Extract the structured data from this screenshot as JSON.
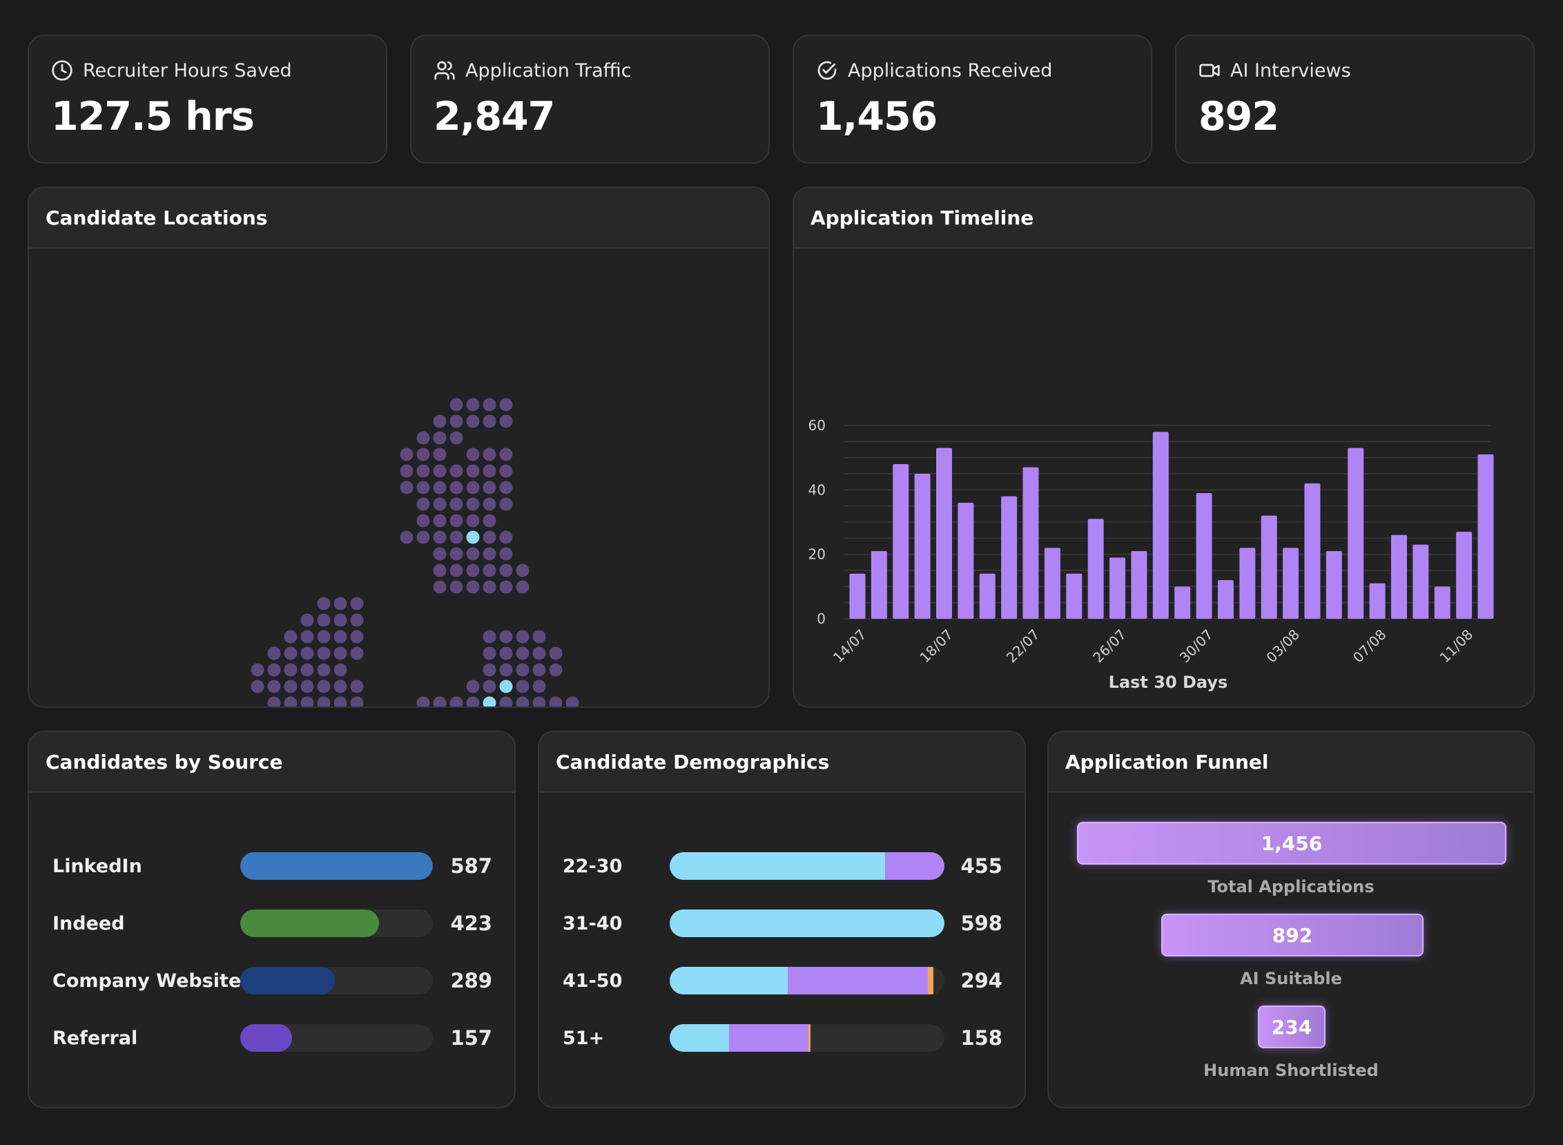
{
  "stats": [
    {
      "label": "Recruiter Hours Saved",
      "value": "127.5 hrs",
      "icon": "clock-icon"
    },
    {
      "label": "Application Traffic",
      "value": "2,847",
      "icon": "users-icon"
    },
    {
      "label": "Applications Received",
      "value": "1,456",
      "icon": "check-circle-icon"
    },
    {
      "label": "AI Interviews",
      "value": "892",
      "icon": "video-icon"
    }
  ],
  "locations": {
    "title": "Candidate Locations",
    "dot_color": "#5c4a7e",
    "highlight_color": "#8fdcf9"
  },
  "timeline": {
    "title": "Application Timeline",
    "chart_data": {
      "type": "bar",
      "title": "Application Timeline",
      "xlabel": "Last 30 Days",
      "ylabel": "",
      "ylim": [
        0,
        60
      ],
      "yticks": [
        0,
        20,
        40,
        60
      ],
      "tick_labels": [
        "14/07",
        "18/07",
        "22/07",
        "26/07",
        "30/07",
        "03/08",
        "07/08",
        "11/08"
      ],
      "values": [
        14,
        21,
        48,
        45,
        53,
        36,
        14,
        38,
        47,
        22,
        14,
        31,
        19,
        21,
        58,
        10,
        39,
        12,
        22,
        32,
        22,
        42,
        21,
        53,
        11,
        26,
        23,
        10,
        27,
        51
      ],
      "bar_color": "#b084f4"
    }
  },
  "sources": {
    "title": "Candidates by Source",
    "items": [
      {
        "label": "LinkedIn",
        "count": "587",
        "value": 587,
        "color": "#3a78bf"
      },
      {
        "label": "Indeed",
        "count": "423",
        "value": 423,
        "color": "#4a8a3e"
      },
      {
        "label": "Company Website",
        "count": "289",
        "value": 289,
        "color": "#1e3f7e"
      },
      {
        "label": "Referral",
        "count": "157",
        "value": 157,
        "color": "#6a48c4"
      }
    ]
  },
  "demographics": {
    "title": "Candidate Demographics",
    "items": [
      {
        "label": "22-30",
        "count": "455",
        "segments": [
          {
            "share": 0.785,
            "color": "#8fdcf9"
          },
          {
            "share": 0.215,
            "color": "#b084f4"
          }
        ]
      },
      {
        "label": "31-40",
        "count": "598",
        "segments": [
          {
            "share": 1.0,
            "color": "#8fdcf9"
          }
        ]
      },
      {
        "label": "41-50",
        "count": "294",
        "segments": [
          {
            "share": 0.43,
            "color": "#8fdcf9"
          },
          {
            "share": 0.51,
            "color": "#b084f4"
          },
          {
            "share": 0.02,
            "color": "#f2a65a"
          }
        ]
      },
      {
        "label": "51+",
        "count": "158",
        "segments": [
          {
            "share": 0.215,
            "color": "#8fdcf9"
          },
          {
            "share": 0.29,
            "color": "#b084f4"
          },
          {
            "share": 0.007,
            "color": "#f2a65a"
          }
        ]
      }
    ]
  },
  "funnel": {
    "title": "Application Funnel",
    "stages": [
      {
        "value": "1,456",
        "label": "Total Applications"
      },
      {
        "value": "892",
        "label": "AI Suitable"
      },
      {
        "value": "234",
        "label": "Human Shortlisted"
      }
    ]
  }
}
